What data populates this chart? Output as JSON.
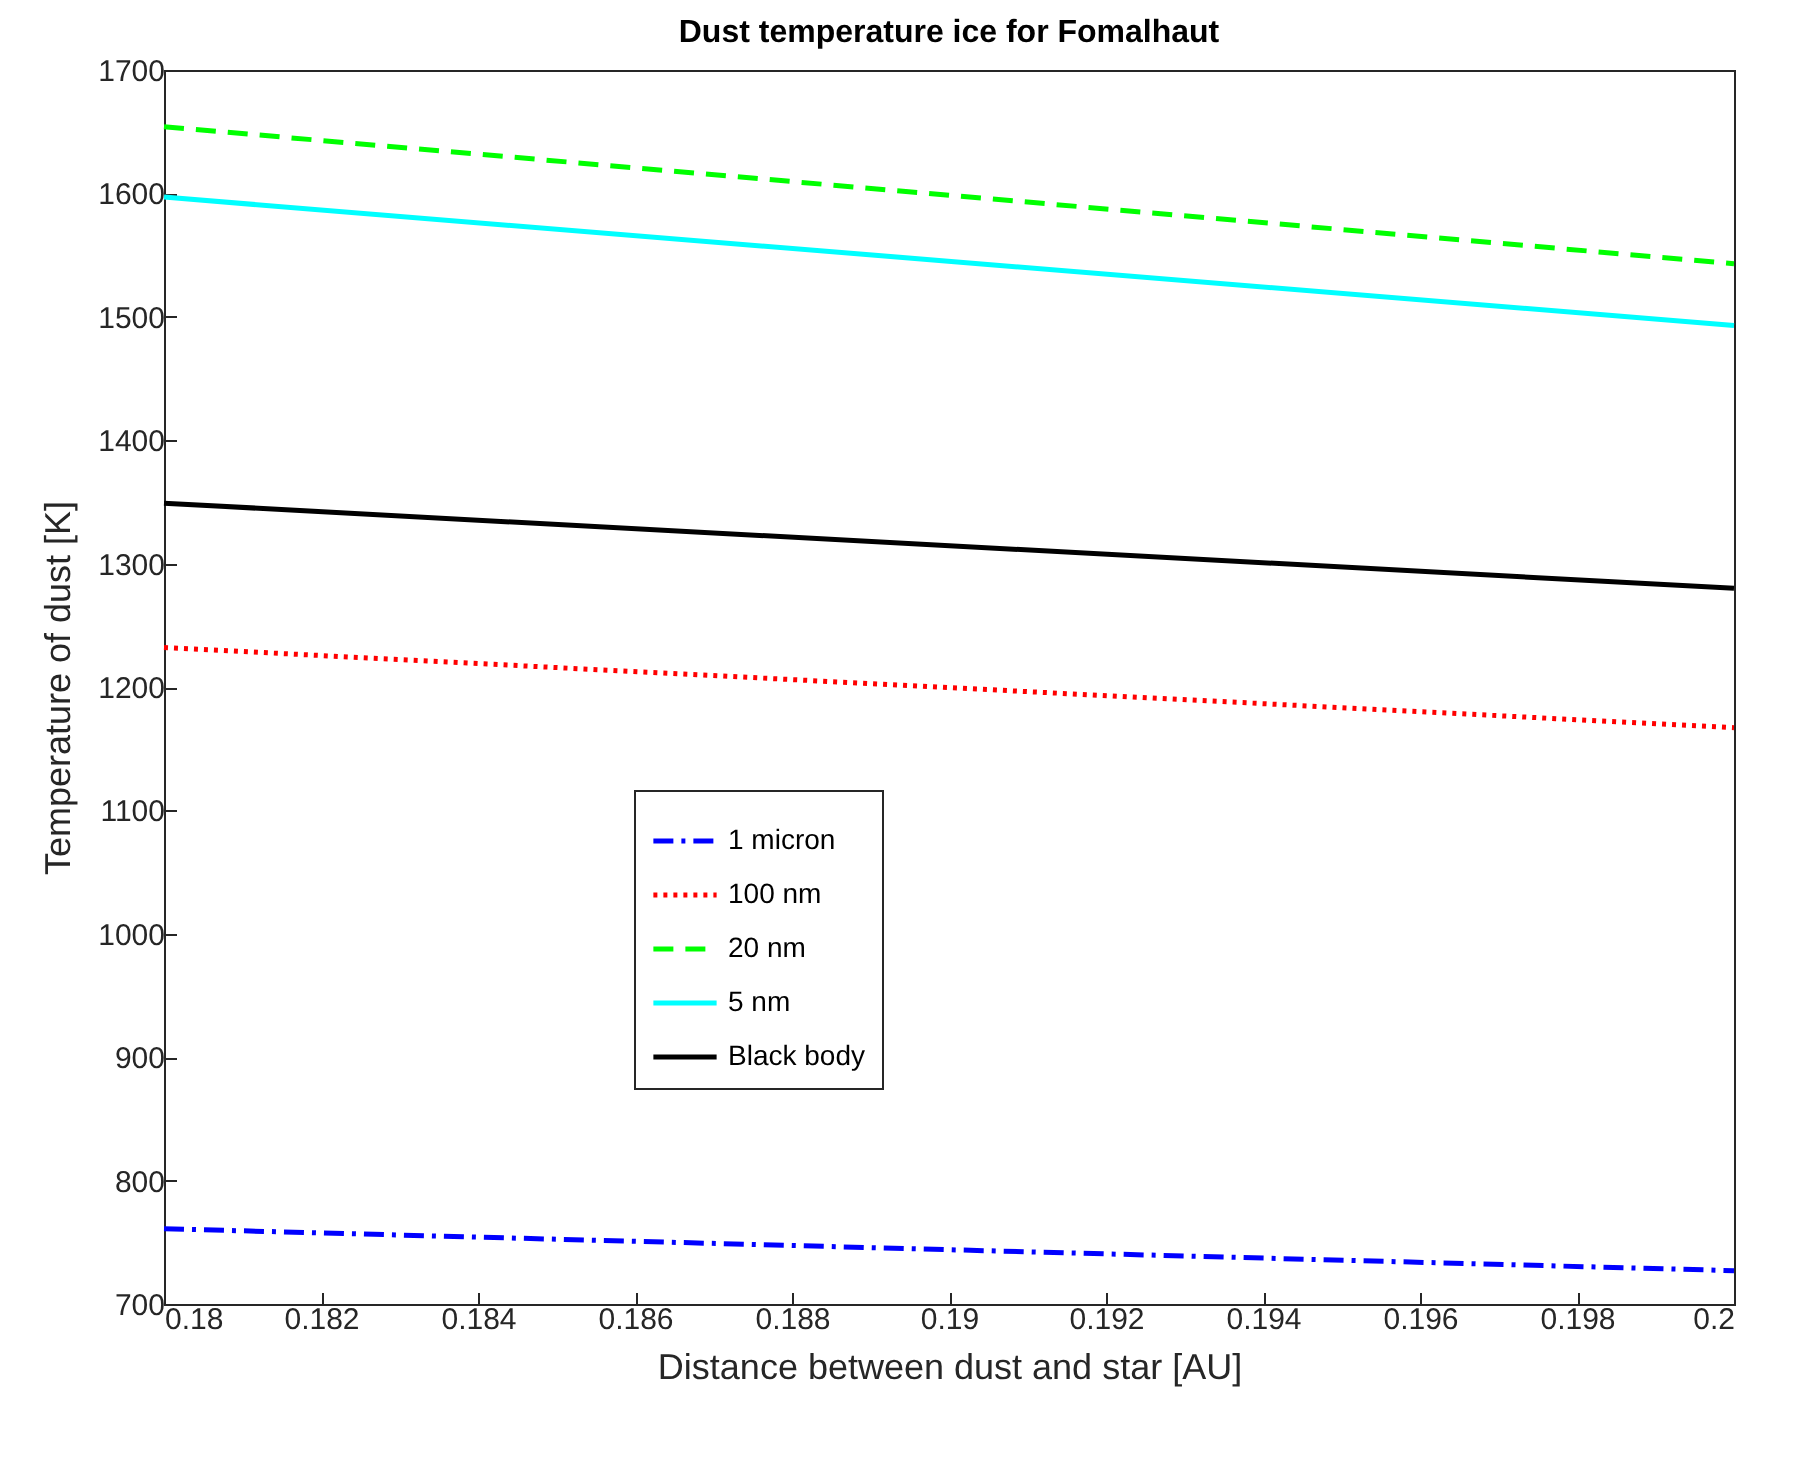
{
  "chart_data": {
    "type": "line",
    "title": "Dust temperature ice for Fomalhaut",
    "xlabel": "Distance between dust and star [AU]",
    "ylabel": "Temperature of dust [K]",
    "x": [
      0.18,
      0.2
    ],
    "series": [
      {
        "name": "1 micron",
        "color": "#0000ff",
        "line_style": "dashdot",
        "values": [
          761,
          727
        ]
      },
      {
        "name": "100 nm",
        "color": "#ff0000",
        "line_style": "dotted",
        "values": [
          1232,
          1167
        ]
      },
      {
        "name": "20 nm",
        "color": "#00ff00",
        "line_style": "dashed",
        "values": [
          1654,
          1543
        ]
      },
      {
        "name": "5 nm",
        "color": "#00ffff",
        "line_style": "solid",
        "values": [
          1597,
          1493
        ]
      },
      {
        "name": "Black body",
        "color": "#000000",
        "line_style": "solid",
        "values": [
          1349,
          1280
        ]
      }
    ],
    "xlim": [
      0.18,
      0.2
    ],
    "xticks": [
      0.18,
      0.182,
      0.184,
      0.186,
      0.188,
      0.19,
      0.192,
      0.194,
      0.196,
      0.198,
      0.2
    ],
    "ylim": [
      700,
      1700
    ],
    "yticks": [
      700,
      800,
      900,
      1000,
      1100,
      1200,
      1300,
      1400,
      1500,
      1600,
      1700
    ],
    "grid": false,
    "legend": "center",
    "marker": "none"
  }
}
